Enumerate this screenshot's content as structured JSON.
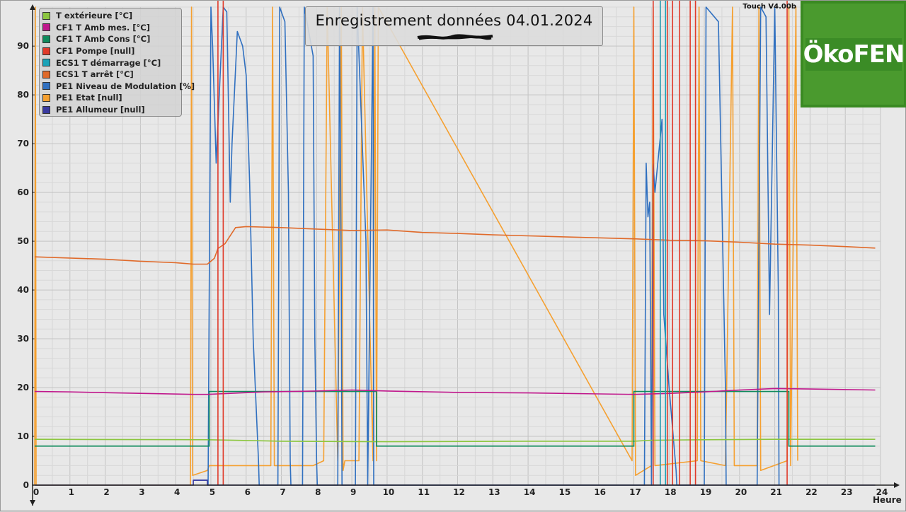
{
  "header": {
    "title": "Enregistrement données  04.01.2024",
    "version": "Touch V4.00b",
    "logo_text": "ÖkoFEN"
  },
  "chart_data": {
    "type": "line",
    "title": "Enregistrement données  04.01.2024",
    "xlabel": "Heure",
    "ylabel": "",
    "xlim": [
      0,
      24
    ],
    "ylim": [
      0,
      98
    ],
    "x_ticks": [
      0,
      1,
      2,
      3,
      4,
      5,
      6,
      7,
      8,
      9,
      10,
      11,
      12,
      13,
      14,
      15,
      16,
      17,
      18,
      19,
      20,
      21,
      22,
      23,
      24
    ],
    "y_ticks": [
      0,
      10,
      20,
      30,
      40,
      50,
      60,
      70,
      80,
      90
    ],
    "grid": true,
    "legend_position": "top-left",
    "series": [
      {
        "name": "T extérieure [°C]",
        "color": "#8cc63f",
        "x": [
          0,
          4.9,
          7,
          10,
          14,
          17,
          17.5,
          19,
          21,
          23.85
        ],
        "y": [
          9.4,
          9.3,
          9.0,
          8.9,
          9.0,
          9.0,
          9.2,
          9.3,
          9.4,
          9.4
        ]
      },
      {
        "name": "CF1 T Amb mes. [°C]",
        "color": "#c0188c",
        "x": [
          0,
          1,
          4.5,
          4.9,
          5.5,
          6.5,
          8,
          9,
          10,
          12,
          14,
          16,
          17,
          18,
          19,
          20,
          21,
          22,
          23.85
        ],
        "y": [
          19.2,
          19.1,
          18.6,
          18.6,
          18.8,
          19.1,
          19.3,
          19.5,
          19.3,
          19.0,
          18.9,
          18.7,
          18.6,
          18.8,
          19.1,
          19.5,
          19.8,
          19.7,
          19.5
        ]
      },
      {
        "name": "CF1 T Amb Cons [°C]",
        "color": "#0f8a5c",
        "steps": [
          [
            0,
            8
          ],
          [
            4.95,
            19.2
          ],
          [
            9.7,
            8
          ],
          [
            17,
            19.2
          ],
          [
            21.4,
            8
          ],
          [
            23.85,
            8
          ]
        ]
      },
      {
        "name": "CF1 Pompe [null]",
        "color": "#e03a2a",
        "pulses": [
          [
            5.2,
            5.35
          ]
        ],
        "spikes": [
          17.55,
          17.75,
          17.95,
          18.1,
          18.3,
          18.6,
          18.75,
          21.35
        ],
        "level": 100
      },
      {
        "name": "ECS1 T démarrage [°C]",
        "color": "#1aa3b8",
        "spikes": [
          17.75,
          17.9
        ],
        "level": 100
      },
      {
        "name": "ECS1 T arrêt [°C]",
        "color": "#e06a2a",
        "x": [
          0,
          2,
          3,
          4,
          4.5,
          4.9,
          5.1,
          5.2,
          5.4,
          5.7,
          6,
          7,
          8,
          9,
          10,
          11,
          12,
          13,
          14,
          15,
          16,
          17,
          18,
          19,
          20,
          21,
          22,
          23,
          23.85
        ],
        "y": [
          46.8,
          46.3,
          45.9,
          45.6,
          45.3,
          45.3,
          46.5,
          48.5,
          49.5,
          52.8,
          53.0,
          52.8,
          52.5,
          52.2,
          52.3,
          51.8,
          51.6,
          51.3,
          51.1,
          50.9,
          50.7,
          50.5,
          50.2,
          50.1,
          49.8,
          49.4,
          49.2,
          48.9,
          48.6
        ]
      },
      {
        "name": "PE1 Niveau de Modulation [%]",
        "color": "#3070c0",
        "x": [
          4.5,
          4.9,
          4.92,
          5.0,
          5.05,
          5.15,
          5.2,
          5.35,
          5.45,
          5.55,
          5.6,
          5.75,
          5.9,
          6.0,
          6.1,
          6.2,
          6.35,
          6.37,
          6.9,
          6.95,
          7.1,
          7.2,
          7.25,
          7.27,
          7.6,
          7.65,
          7.9,
          7.95,
          8.0,
          8.02,
          8.6,
          8.65,
          8.7,
          8.72,
          9.1,
          9.15,
          9.4,
          9.45,
          9.6,
          9.62,
          17.3,
          17.35,
          17.4,
          17.45,
          17.5,
          17.55,
          17.6,
          17.8,
          17.85,
          18.0,
          18.2,
          18.22,
          19.0,
          19.05,
          19.4,
          19.6,
          19.62,
          20.5,
          20.6,
          20.75,
          20.85,
          21.0,
          21.1,
          21.12
        ],
        "y": [
          1,
          1,
          0,
          98,
          90,
          66,
          74,
          98,
          97,
          58,
          70,
          93,
          90,
          84,
          62,
          30,
          5,
          0,
          0,
          98,
          95,
          60,
          5,
          0,
          0,
          98,
          88,
          30,
          5,
          0,
          0,
          98,
          40,
          0,
          0,
          98,
          50,
          0,
          98,
          0,
          0,
          66,
          55,
          58,
          0,
          66,
          60,
          75,
          35,
          20,
          3,
          0,
          0,
          98,
          95,
          20,
          0,
          0,
          98,
          96,
          35,
          98,
          40,
          0
        ]
      },
      {
        "name": "PE1 Etat [null]",
        "color": "#f5a030",
        "x": [
          0,
          0.02,
          0.04,
          4.42,
          4.45,
          4.48,
          4.9,
          4.95,
          5.6,
          6.7,
          6.75,
          6.8,
          7.9,
          8.2,
          8.3,
          8.6,
          8.7,
          8.75,
          8.8,
          9.2,
          9.3,
          9.6,
          9.65,
          9.7,
          9.75,
          16.95,
          17.0,
          17.05,
          17.5,
          17.55,
          17.6,
          18.8,
          18.85,
          18.9,
          19.6,
          19.8,
          19.85,
          20.0,
          20.5,
          20.55,
          20.6,
          21.35,
          21.4,
          21.45,
          21.6,
          21.65
        ],
        "y": [
          0,
          98,
          0,
          0,
          98,
          2,
          3,
          4,
          4,
          4,
          98,
          4,
          4,
          5,
          98,
          5,
          98,
          3,
          5,
          5,
          98,
          5,
          98,
          5,
          98,
          5,
          98,
          2,
          4,
          98,
          4,
          5,
          98,
          5,
          4,
          98,
          4,
          4,
          4,
          98,
          3,
          5,
          98,
          4,
          98,
          5
        ]
      },
      {
        "name": "PE1 Allumeur [null]",
        "color": "#3a3aa0",
        "x": [
          0,
          4.5,
          4.5,
          4.9,
          4.9,
          23.85
        ],
        "y": [
          0,
          0,
          1,
          1,
          0,
          0
        ]
      }
    ]
  }
}
